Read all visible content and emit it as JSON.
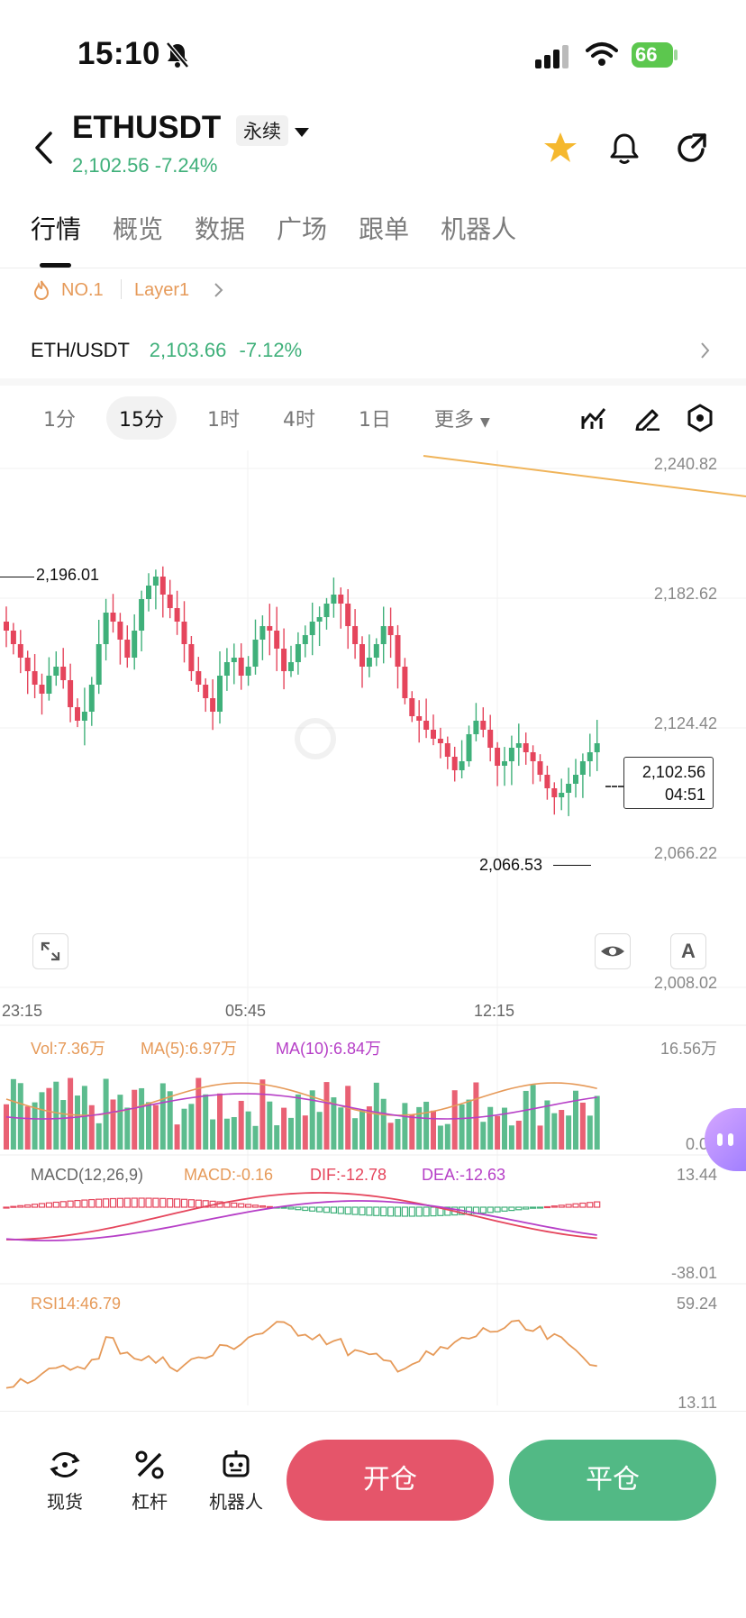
{
  "status": {
    "time": "15:10",
    "battery": "66"
  },
  "header": {
    "symbol": "ETHUSDT",
    "contract_type": "永续",
    "price_change": "2,102.56 -7.24%"
  },
  "tabs": [
    "行情",
    "概览",
    "数据",
    "广场",
    "跟单",
    "机器人"
  ],
  "tags": {
    "rank": "NO.1",
    "category": "Layer1"
  },
  "spot_pair": {
    "pair": "ETH/USDT",
    "price": "2,103.66",
    "change": "-7.12%"
  },
  "timeframes": [
    "1分",
    "15分",
    "1时",
    "4时",
    "1日",
    "更多"
  ],
  "price_axis": [
    "2,240.82",
    "2,182.62",
    "2,124.42",
    "2,066.22",
    "2,008.02"
  ],
  "high_marker": "2,196.01",
  "low_marker": "2,066.53",
  "current_price_box": {
    "price": "2,102.56",
    "countdown": "04:51"
  },
  "time_axis": [
    "23:15",
    "05:45",
    "12:15"
  ],
  "volume": {
    "vol": "Vol:7.36万",
    "ma5": "MA(5):6.97万",
    "ma10": "MA(10):6.84万",
    "max": "16.56万",
    "min": "0.00"
  },
  "macd": {
    "name": "MACD(12,26,9)",
    "macd": "MACD:-0.16",
    "dif": "DIF:-12.78",
    "dea": "DEA:-12.63",
    "max": "13.44",
    "min": "-38.01"
  },
  "rsi": {
    "name": "RSI14:46.79",
    "max": "59.24",
    "min": "13.11"
  },
  "bottom_nav": [
    "现货",
    "杠杆",
    "机器人"
  ],
  "actions": {
    "open": "开仓",
    "close": "平仓"
  },
  "colors": {
    "up": "#3fb07a",
    "down": "#e5455c",
    "accent": "#e69a59",
    "macd_dea": "#b63fc7"
  }
}
